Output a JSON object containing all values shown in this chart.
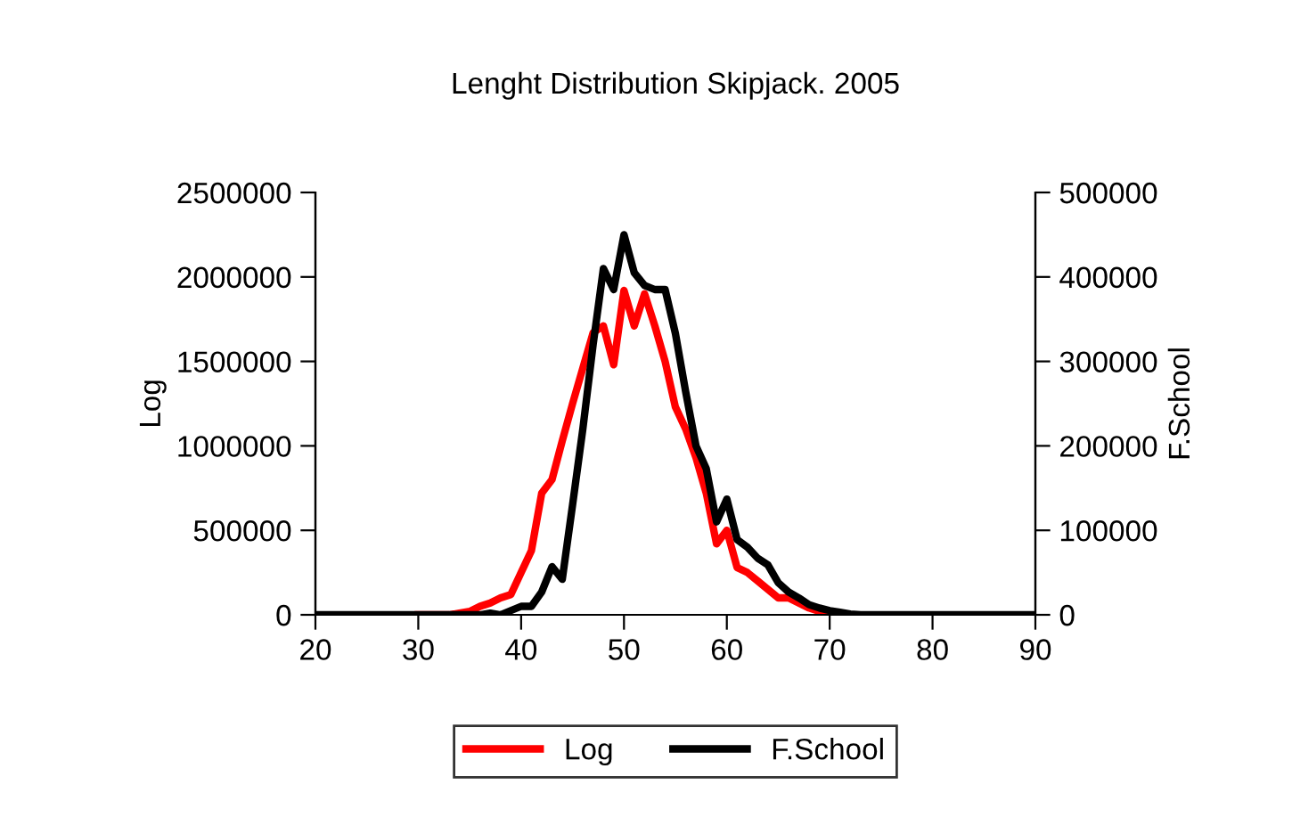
{
  "chart_data": {
    "type": "line",
    "title": "Lenght Distribution Skipjack. 2005",
    "ylabel": "Log",
    "y2label": "F.School",
    "x": [
      20,
      25,
      30,
      33,
      34,
      35,
      36,
      37,
      38,
      39,
      40,
      41,
      42,
      43,
      44,
      45,
      46,
      47,
      48,
      49,
      50,
      51,
      52,
      53,
      54,
      55,
      56,
      57,
      58,
      59,
      60,
      61,
      62,
      63,
      64,
      65,
      66,
      67,
      68,
      69,
      70,
      71,
      72,
      73,
      75,
      80,
      85,
      90
    ],
    "series": [
      {
        "name": "Log",
        "color": "#ff0000",
        "values": [
          null,
          null,
          0,
          0,
          10000,
          20000,
          50000,
          70000,
          100000,
          120000,
          250000,
          380000,
          720000,
          800000,
          1030000,
          1250000,
          1460000,
          1670000,
          1710000,
          1480000,
          1920000,
          1710000,
          1900000,
          1710000,
          1500000,
          1230000,
          1100000,
          930000,
          720000,
          420000,
          500000,
          280000,
          250000,
          200000,
          150000,
          100000,
          100000,
          70000,
          40000,
          20000,
          10000,
          0,
          null,
          null,
          null,
          null,
          null,
          null
        ]
      },
      {
        "name": "F.School",
        "color": "#000000",
        "axis": "y2",
        "values": [
          0,
          0,
          0,
          0,
          0,
          0,
          0,
          2000,
          0,
          5000,
          10000,
          10000,
          27000,
          57000,
          42000,
          130000,
          220000,
          320000,
          410000,
          385000,
          450000,
          405000,
          390000,
          385000,
          385000,
          333000,
          264000,
          200000,
          173000,
          110000,
          137000,
          89000,
          80000,
          67000,
          59000,
          38000,
          27000,
          20000,
          12000,
          8000,
          5000,
          3000,
          1000,
          0,
          0,
          0,
          0,
          0
        ]
      }
    ],
    "xlim": [
      20,
      90
    ],
    "xticks": [
      20,
      30,
      40,
      50,
      60,
      70,
      80,
      90
    ],
    "ylim": [
      0,
      2500000
    ],
    "yticks": [
      0,
      500000,
      1000000,
      1500000,
      2000000,
      2500000
    ],
    "y2lim": [
      0,
      500000
    ],
    "y2ticks": [
      0,
      100000,
      200000,
      300000,
      400000,
      500000
    ],
    "grid": false,
    "legend": "bottom",
    "marker": "none",
    "line_style": "solid"
  }
}
